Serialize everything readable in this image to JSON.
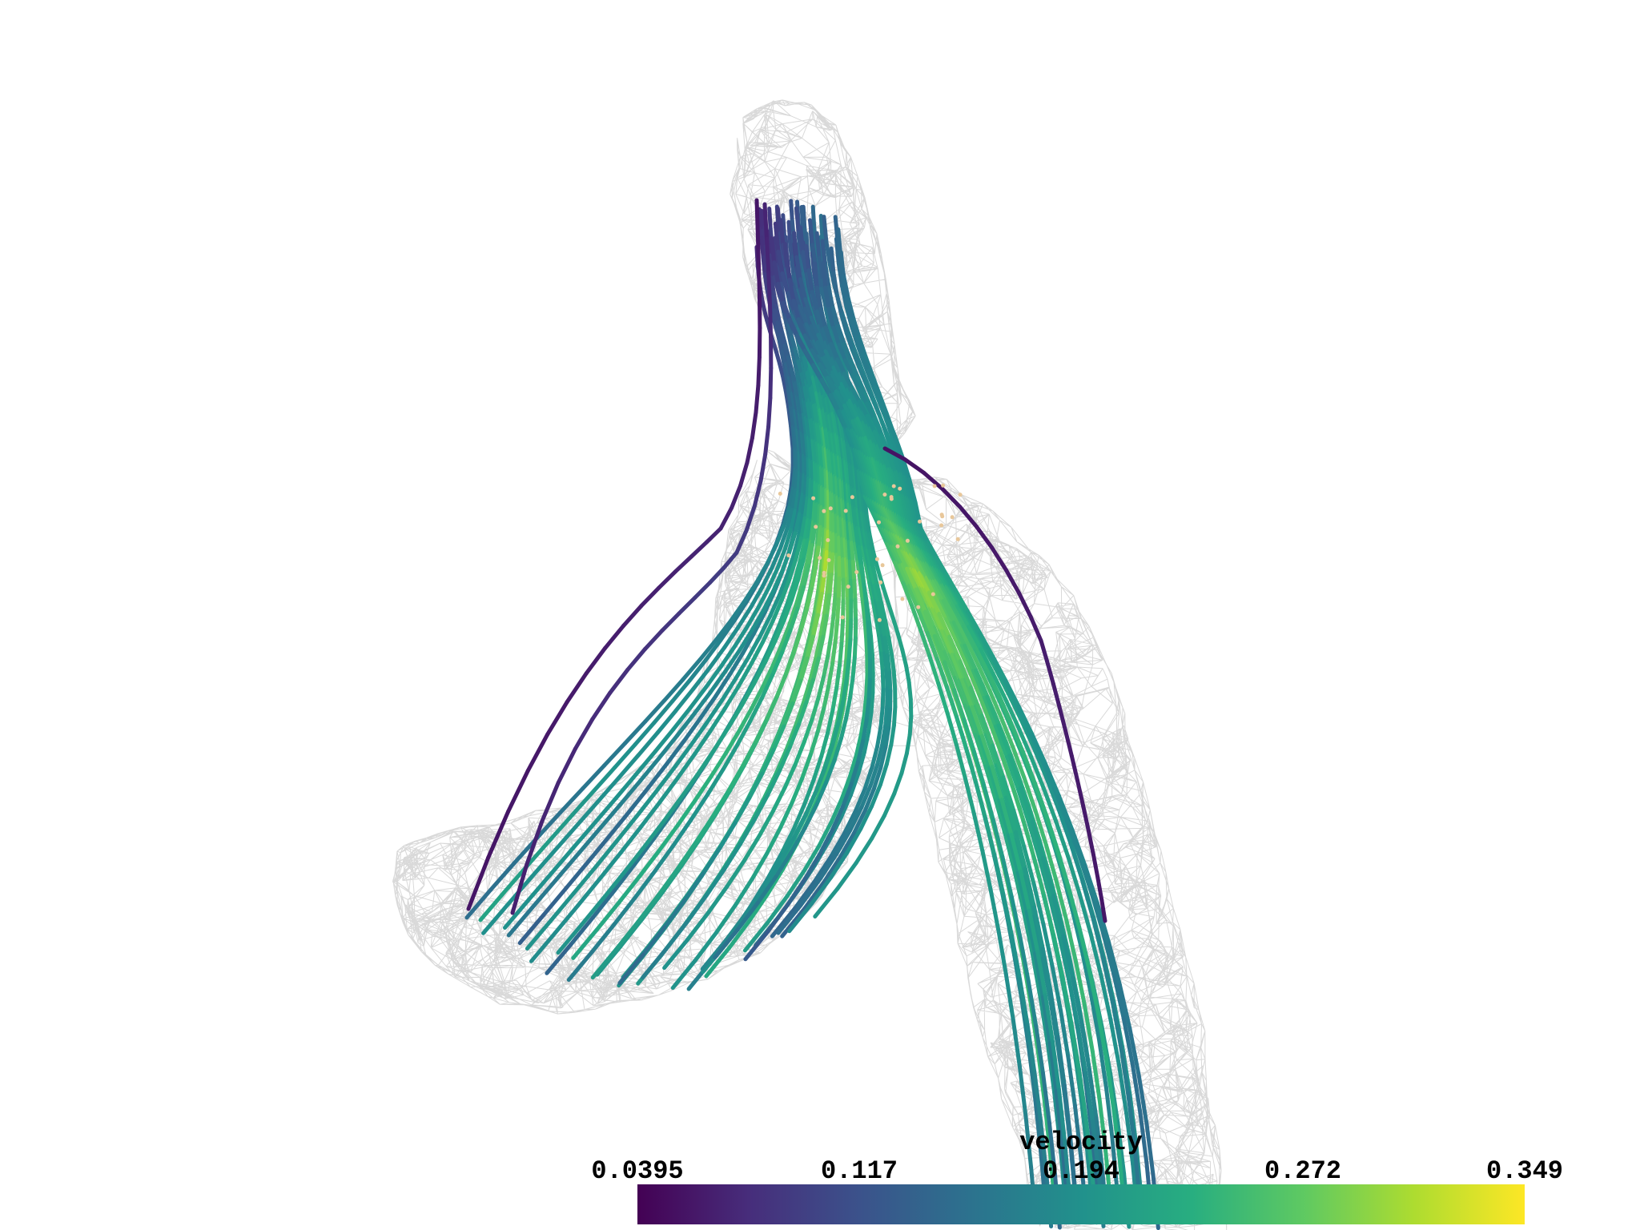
{
  "scene": {
    "mesh": "vessel-wireframe",
    "streamlines_colored_by": "velocity"
  },
  "scalar_bar": {
    "title": "velocity",
    "ticks": [
      "0.0395",
      "0.117",
      "0.194",
      "0.272",
      "0.349"
    ],
    "range": [
      0.0395,
      0.349
    ],
    "colormap": "viridis",
    "colors": [
      "#440154",
      "#472d7b",
      "#3b528b",
      "#2c728e",
      "#21918c",
      "#28ae80",
      "#5ec962",
      "#addc30",
      "#fde725"
    ]
  }
}
